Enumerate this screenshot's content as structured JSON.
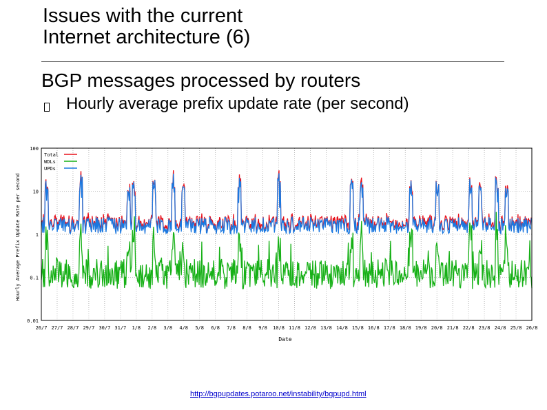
{
  "slide": {
    "title_line1": "Issues with the current",
    "title_line2": "Internet architecture (6)",
    "subheading": "BGP messages processed by routers",
    "bullet": "Hourly average prefix update rate (per second)",
    "link": "http://bgpupdates.potaroo.net/instability/bgpupd.html"
  },
  "chart_data": {
    "type": "line",
    "ylabel": "Hourly Average Prefix Update Rate per second",
    "xlabel": "Date",
    "y_scale": "log",
    "ylim": [
      0.01,
      100
    ],
    "y_ticks": [
      {
        "value": 100,
        "label": "100"
      },
      {
        "value": 10,
        "label": "10"
      },
      {
        "value": 1,
        "label": "1"
      },
      {
        "value": 0.1,
        "label": "0.1"
      },
      {
        "value": 0.01,
        "label": "0.01"
      }
    ],
    "x_ticks": [
      "26/7",
      "27/7",
      "28/7",
      "29/7",
      "30/7",
      "31/7",
      "1/8",
      "2/8",
      "3/8",
      "4/8",
      "5/8",
      "6/8",
      "7/8",
      "8/8",
      "9/8",
      "10/8",
      "11/8",
      "12/8",
      "13/8",
      "14/8",
      "15/8",
      "16/8",
      "17/8",
      "18/8",
      "19/8",
      "20/8",
      "21/8",
      "22/8",
      "23/8",
      "24/8",
      "25/8",
      "26/8"
    ],
    "grid": true,
    "legend_position": "top-left",
    "series": [
      {
        "name": "Total",
        "color": "#e8101a",
        "base": 1.8
      },
      {
        "name": "WDLs",
        "color": "#16b016",
        "base": 0.12
      },
      {
        "name": "UPDs",
        "color": "#1a78e0",
        "base": 1.6
      }
    ]
  }
}
